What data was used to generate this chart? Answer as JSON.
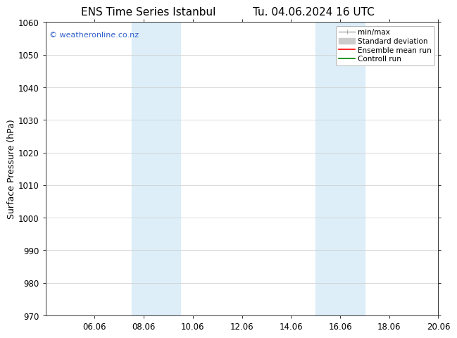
{
  "title_left": "ENS Time Series Istanbul",
  "title_right": "Tu. 04.06.2024 16 UTC",
  "ylabel": "Surface Pressure (hPa)",
  "ylim": [
    970,
    1060
  ],
  "yticks": [
    970,
    980,
    990,
    1000,
    1010,
    1020,
    1030,
    1040,
    1050,
    1060
  ],
  "xlim": [
    0,
    16
  ],
  "xtick_labels": [
    "06.06",
    "08.06",
    "10.06",
    "12.06",
    "14.06",
    "16.06",
    "18.06",
    "20.06"
  ],
  "xtick_positions": [
    2,
    4,
    6,
    8,
    10,
    12,
    14,
    16
  ],
  "shaded_bands": [
    {
      "x_start": 3.5,
      "x_end": 5.5
    },
    {
      "x_start": 11.0,
      "x_end": 13.0
    }
  ],
  "shaded_color": "#ddeef8",
  "background_color": "#ffffff",
  "grid_color": "#cccccc",
  "watermark_text": "© weatheronline.co.nz",
  "watermark_color": "#3060cc",
  "legend_minmax_color": "#aaaaaa",
  "legend_std_color": "#cccccc",
  "legend_ens_color": "#ff0000",
  "legend_ctrl_color": "#008000",
  "font_family": "DejaVu Sans",
  "title_fontsize": 11,
  "axis_fontsize": 9,
  "tick_fontsize": 8.5,
  "legend_fontsize": 7.5,
  "watermark_fontsize": 8
}
